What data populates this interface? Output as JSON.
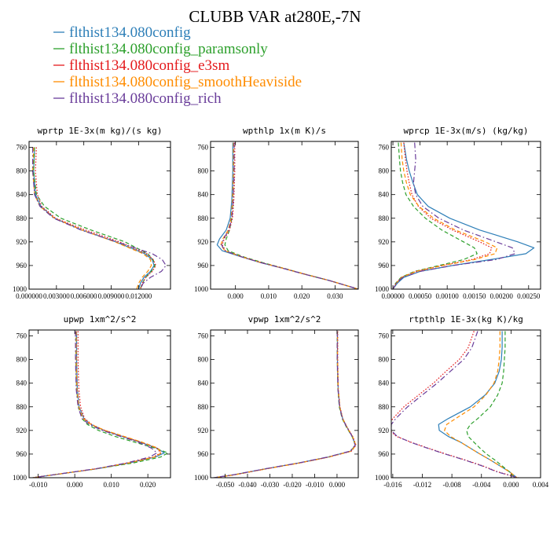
{
  "figure": {
    "title": "CLUBB VAR at280E,-7N"
  },
  "chart_data": {
    "legend": [
      {
        "name": "flthist134.080config",
        "color": "#2E7FB8",
        "dash": "solid"
      },
      {
        "name": "flthist134.080config_paramsonly",
        "color": "#2DA02C",
        "dash": "dashed"
      },
      {
        "name": "flthist134.080config_e3sm",
        "color": "#E41A1C",
        "dash": "dotted"
      },
      {
        "name": "flthist134.080config_smoothHeaviside",
        "color": "#FF8C00",
        "dash": "dashed"
      },
      {
        "name": "flthist134.080config_rich",
        "color": "#6A3D9A",
        "dash": "dashdot"
      }
    ],
    "panels": [
      {
        "id": "wprtp",
        "type": "line",
        "title": "wprtp  1E-3x(m kg)/(s kg)",
        "xlim": [
          0.0,
          0.0155
        ],
        "ylim": [
          1000,
          750
        ],
        "xticks": [
          0.0,
          0.003,
          0.006,
          0.009,
          0.012
        ],
        "xtick_labels": [
          "0.000000",
          "0.003000",
          "0.006000",
          "0.009000",
          "0.012000"
        ],
        "yticks": [
          760,
          800,
          840,
          880,
          920,
          960,
          1000
        ],
        "y": [
          760,
          800,
          840,
          860,
          880,
          900,
          920,
          940,
          950,
          960,
          970,
          980,
          990,
          1000
        ],
        "series": [
          {
            "name": "flthist134.080config",
            "x": [
              0.0006,
              0.0005,
              0.0007,
              0.0013,
              0.0028,
              0.0058,
              0.0095,
              0.0127,
              0.0135,
              0.0137,
              0.0133,
              0.0126,
              0.0122,
              0.012
            ]
          },
          {
            "name": "flthist134.080config_paramsonly",
            "x": [
              0.0006,
              0.0005,
              0.0008,
              0.0017,
              0.0035,
              0.0068,
              0.0105,
              0.013,
              0.0136,
              0.0138,
              0.0134,
              0.0128,
              0.0124,
              0.0122
            ]
          },
          {
            "name": "flthist134.080config_e3sm",
            "x": [
              0.0008,
              0.0007,
              0.0009,
              0.0014,
              0.0029,
              0.0062,
              0.0099,
              0.0129,
              0.0136,
              0.0139,
              0.0135,
              0.0128,
              0.0124,
              0.0122
            ]
          },
          {
            "name": "flthist134.080config_smoothHeaviside",
            "x": [
              0.0005,
              0.0004,
              0.0006,
              0.0012,
              0.0028,
              0.0058,
              0.0094,
              0.0125,
              0.0133,
              0.0134,
              0.013,
              0.0124,
              0.012,
              0.0118
            ]
          },
          {
            "name": "flthist134.080config_rich",
            "x": [
              0.0004,
              0.0004,
              0.0006,
              0.0012,
              0.0027,
              0.0057,
              0.0096,
              0.0135,
              0.0146,
              0.015,
              0.0145,
              0.0133,
              0.0125,
              0.0122
            ]
          }
        ]
      },
      {
        "id": "wpthlp",
        "type": "line",
        "title": "wpthlp  1x(m K)/s",
        "xlim": [
          -0.0075,
          0.037
        ],
        "ylim": [
          1000,
          750
        ],
        "xticks": [
          0.0,
          0.01,
          0.02,
          0.03
        ],
        "xtick_labels": [
          "0.000",
          "0.010",
          "0.020",
          "0.030"
        ],
        "yticks": [
          760,
          800,
          840,
          880,
          920,
          960,
          1000
        ],
        "y": [
          752,
          800,
          850,
          880,
          900,
          915,
          925,
          935,
          945,
          955,
          965,
          975,
          985,
          995,
          1000
        ],
        "series": [
          {
            "name": "flthist134.080config",
            "x": [
              -0.0008,
              -0.0008,
              -0.0011,
              -0.0016,
              -0.0028,
              -0.0048,
              -0.0055,
              -0.004,
              0.0015,
              0.0075,
              0.0145,
              0.021,
              0.028,
              0.034,
              0.037
            ]
          },
          {
            "name": "flthist134.080config_paramsonly",
            "x": [
              -0.0006,
              -0.0006,
              -0.0008,
              -0.0011,
              -0.0018,
              -0.0028,
              -0.0032,
              -0.0022,
              0.0022,
              0.0082,
              0.0148,
              0.0212,
              0.028,
              0.034,
              0.037
            ]
          },
          {
            "name": "flthist134.080config_e3sm",
            "x": [
              -0.0002,
              -0.0002,
              -0.0005,
              -0.0009,
              -0.0018,
              -0.0034,
              -0.004,
              -0.003,
              0.0018,
              0.0078,
              0.0146,
              0.0211,
              0.028,
              0.034,
              0.037
            ]
          },
          {
            "name": "flthist134.080config_smoothHeaviside",
            "x": [
              -0.0006,
              -0.0006,
              -0.0009,
              -0.0013,
              -0.0022,
              -0.0038,
              -0.0044,
              -0.0032,
              0.0017,
              0.0077,
              0.0146,
              0.0211,
              0.028,
              0.034,
              0.037
            ]
          },
          {
            "name": "flthist134.080config_rich",
            "x": [
              -0.0004,
              -0.0004,
              -0.0007,
              -0.0011,
              -0.002,
              -0.0036,
              -0.0042,
              -0.0032,
              0.0016,
              0.0076,
              0.0145,
              0.021,
              0.028,
              0.034,
              0.037
            ]
          }
        ]
      },
      {
        "id": "wprcp",
        "type": "line",
        "title": "wprcp  1E-3x(m/s) (kg/kg)",
        "xlim": [
          -3e-05,
          0.00272
        ],
        "ylim": [
          1000,
          750
        ],
        "xticks": [
          0.0,
          0.0005,
          0.001,
          0.0015,
          0.002,
          0.0025
        ],
        "xtick_labels": [
          "0.00000",
          "0.00050",
          "0.00100",
          "0.00150",
          "0.00200",
          "0.00250"
        ],
        "yticks": [
          760,
          800,
          840,
          880,
          920,
          960,
          1000
        ],
        "y": [
          752,
          780,
          800,
          820,
          840,
          860,
          880,
          900,
          920,
          930,
          940,
          950,
          960,
          970,
          980,
          990,
          1000
        ],
        "series": [
          {
            "name": "flthist134.080config",
            "x": [
              0.0002,
              0.00025,
              0.0003,
              0.00037,
              0.00045,
              0.00065,
              0.00105,
              0.0016,
              0.0023,
              0.0026,
              0.00245,
              0.0018,
              0.0011,
              0.0005,
              0.0002,
              8e-05,
              0.0
            ]
          },
          {
            "name": "flthist134.080config_paramsonly",
            "x": [
              0.0001,
              0.00012,
              0.00014,
              0.00018,
              0.00024,
              0.00038,
              0.0006,
              0.0009,
              0.0013,
              0.0015,
              0.00155,
              0.0013,
              0.00085,
              0.0004,
              0.00015,
              5e-05,
              0.0
            ]
          },
          {
            "name": "flthist134.080config_e3sm",
            "x": [
              0.0002,
              0.00023,
              0.00026,
              0.0003,
              0.00035,
              0.00047,
              0.0007,
              0.0011,
              0.0016,
              0.00182,
              0.00178,
              0.00145,
              0.0009,
              0.00042,
              0.00016,
              6e-05,
              0.0
            ]
          },
          {
            "name": "flthist134.080config_smoothHeaviside",
            "x": [
              0.00015,
              0.00017,
              0.0002,
              0.00025,
              0.00032,
              0.00048,
              0.00075,
              0.00115,
              0.0017,
              0.00192,
              0.00188,
              0.0015,
              0.00092,
              0.00043,
              0.00016,
              6e-05,
              0.0
            ]
          },
          {
            "name": "flthist134.080config_rich",
            "x": [
              0.0004,
              0.00042,
              0.0004,
              0.00038,
              0.00042,
              0.00055,
              0.00085,
              0.0013,
              0.0019,
              0.0022,
              0.00225,
              0.0019,
              0.0011,
              0.0005,
              0.00018,
              6e-05,
              0.0
            ]
          }
        ]
      },
      {
        "id": "upwp",
        "type": "line",
        "title": "upwp  1xm^2/s^2",
        "xlim": [
          -0.0125,
          0.0262
        ],
        "ylim": [
          1000,
          750
        ],
        "xticks": [
          -0.01,
          0.0,
          0.01,
          0.02
        ],
        "xtick_labels": [
          "-0.010",
          "0.000",
          "0.010",
          "0.020"
        ],
        "yticks": [
          760,
          800,
          840,
          880,
          920,
          960,
          1000
        ],
        "y": [
          752,
          800,
          850,
          880,
          900,
          910,
          920,
          930,
          940,
          950,
          958,
          965,
          975,
          985,
          1000
        ],
        "series": [
          {
            "name": "flthist134.080config",
            "x": [
              0.0005,
              0.0005,
              0.0007,
              0.0012,
              0.0025,
              0.0045,
              0.008,
              0.013,
              0.018,
              0.0225,
              0.0245,
              0.022,
              0.015,
              0.006,
              -0.0115
            ]
          },
          {
            "name": "flthist134.080config_paramsonly",
            "x": [
              0.0003,
              0.0003,
              0.0005,
              0.001,
              0.002,
              0.0035,
              0.0065,
              0.011,
              0.0165,
              0.022,
              0.0255,
              0.0235,
              0.016,
              0.006,
              -0.0115
            ]
          },
          {
            "name": "flthist134.080config_e3sm",
            "x": [
              0.0009,
              0.0009,
              0.0011,
              0.0016,
              0.0027,
              0.0047,
              0.0082,
              0.0132,
              0.0182,
              0.0225,
              0.0235,
              0.0215,
              0.0145,
              0.0058,
              -0.0115
            ]
          },
          {
            "name": "flthist134.080config_smoothHeaviside",
            "x": [
              0.0004,
              0.0004,
              0.0006,
              0.0011,
              0.0023,
              0.0045,
              0.0083,
              0.0135,
              0.0185,
              0.0228,
              0.0238,
              0.0218,
              0.0148,
              0.0058,
              -0.0115
            ]
          },
          {
            "name": "flthist134.080config_rich",
            "x": [
              0.0002,
              0.0002,
              0.0004,
              0.0009,
              0.002,
              0.004,
              0.0075,
              0.0125,
              0.0175,
              0.021,
              0.0225,
              0.0205,
              0.0142,
              0.0056,
              -0.0115
            ]
          }
        ]
      },
      {
        "id": "vpwp",
        "type": "line",
        "title": "vpwp  1xm^2/s^2",
        "xlim": [
          -0.0565,
          0.0095
        ],
        "ylim": [
          1000,
          750
        ],
        "xticks": [
          -0.05,
          -0.04,
          -0.03,
          -0.02,
          -0.01,
          0.0
        ],
        "xtick_labels": [
          "-0.050",
          "-0.040",
          "-0.030",
          "-0.020",
          "-0.010",
          "0.000"
        ],
        "yticks": [
          760,
          800,
          840,
          880,
          920,
          960,
          1000
        ],
        "y": [
          752,
          800,
          850,
          880,
          900,
          915,
          930,
          945,
          955,
          965,
          975,
          985,
          995,
          1000
        ],
        "series": [
          {
            "name": "flthist134.080config",
            "x": [
              0.0002,
              0.0002,
              0.0005,
              0.0012,
              0.0025,
              0.0045,
              0.0068,
              0.0082,
              0.006,
              -0.004,
              -0.017,
              -0.032,
              -0.046,
              -0.055
            ]
          },
          {
            "name": "flthist134.080config_paramsonly",
            "x": [
              0.0001,
              0.0001,
              0.0004,
              0.001,
              0.0023,
              0.0043,
              0.0067,
              0.0083,
              0.0062,
              -0.0038,
              -0.0168,
              -0.0318,
              -0.0458,
              -0.0548
            ]
          },
          {
            "name": "flthist134.080config_e3sm",
            "x": [
              0.0003,
              0.0003,
              0.0006,
              0.0013,
              0.0026,
              0.0046,
              0.007,
              0.0085,
              0.0064,
              -0.0036,
              -0.0166,
              -0.0316,
              -0.0456,
              -0.0546
            ]
          },
          {
            "name": "flthist134.080config_smoothHeaviside",
            "x": [
              0.0002,
              0.0002,
              0.0005,
              0.0012,
              0.0025,
              0.0045,
              0.0069,
              0.0084,
              0.0063,
              -0.0037,
              -0.0167,
              -0.0317,
              -0.0457,
              -0.0547
            ]
          },
          {
            "name": "flthist134.080config_rich",
            "x": [
              0.0001,
              0.0001,
              0.0004,
              0.0011,
              0.0024,
              0.0044,
              0.0068,
              0.0081,
              0.0058,
              -0.0042,
              -0.0172,
              -0.0322,
              -0.0462,
              -0.0552
            ]
          }
        ]
      },
      {
        "id": "rtpthlp",
        "type": "line",
        "title": "rtpthlp  1E-3x(kg K)/kg",
        "xlim": [
          -0.0162,
          0.004
        ],
        "ylim": [
          1000,
          750
        ],
        "xticks": [
          -0.016,
          -0.012,
          -0.008,
          -0.004,
          0.0,
          0.004
        ],
        "xtick_labels": [
          "-0.016",
          "-0.012",
          "-0.008",
          "-0.004",
          "0.000",
          "0.004"
        ],
        "yticks": [
          760,
          800,
          840,
          880,
          920,
          960,
          1000
        ],
        "y": [
          752,
          780,
          800,
          820,
          840,
          860,
          880,
          900,
          910,
          920,
          930,
          940,
          950,
          960,
          970,
          980,
          990,
          1000
        ],
        "series": [
          {
            "name": "flthist134.080config",
            "x": [
              -0.0012,
              -0.0012,
              -0.0013,
              -0.0016,
              -0.0022,
              -0.0035,
              -0.0055,
              -0.0085,
              -0.0098,
              -0.0097,
              -0.0085,
              -0.0068,
              -0.0055,
              -0.0042,
              -0.0028,
              -0.0015,
              -0.0002,
              0.0008
            ]
          },
          {
            "name": "flthist134.080config_paramsonly",
            "x": [
              -0.0008,
              -0.0008,
              -0.0009,
              -0.001,
              -0.0012,
              -0.0018,
              -0.0028,
              -0.0045,
              -0.0055,
              -0.006,
              -0.0058,
              -0.005,
              -0.0042,
              -0.0033,
              -0.0022,
              -0.0012,
              -0.0002,
              0.0005
            ]
          },
          {
            "name": "flthist134.080config_e3sm",
            "x": [
              -0.005,
              -0.0058,
              -0.007,
              -0.0088,
              -0.0105,
              -0.0125,
              -0.0145,
              -0.016,
              -0.0165,
              -0.0164,
              -0.0155,
              -0.0135,
              -0.0112,
              -0.0088,
              -0.0062,
              -0.0038,
              -0.0018,
              0.001
            ]
          },
          {
            "name": "flthist134.080config_smoothHeaviside",
            "x": [
              -0.0015,
              -0.0015,
              -0.0016,
              -0.0018,
              -0.0023,
              -0.0034,
              -0.005,
              -0.0075,
              -0.0087,
              -0.009,
              -0.0082,
              -0.0068,
              -0.0055,
              -0.0042,
              -0.0028,
              -0.0015,
              -0.0002,
              0.0008
            ]
          },
          {
            "name": "flthist134.080config_rich",
            "x": [
              -0.0045,
              -0.0053,
              -0.0064,
              -0.0082,
              -0.01,
              -0.012,
              -0.014,
              -0.0156,
              -0.0162,
              -0.0162,
              -0.0154,
              -0.0136,
              -0.0113,
              -0.0089,
              -0.0063,
              -0.0039,
              -0.0019,
              0.0009
            ]
          }
        ]
      }
    ]
  }
}
